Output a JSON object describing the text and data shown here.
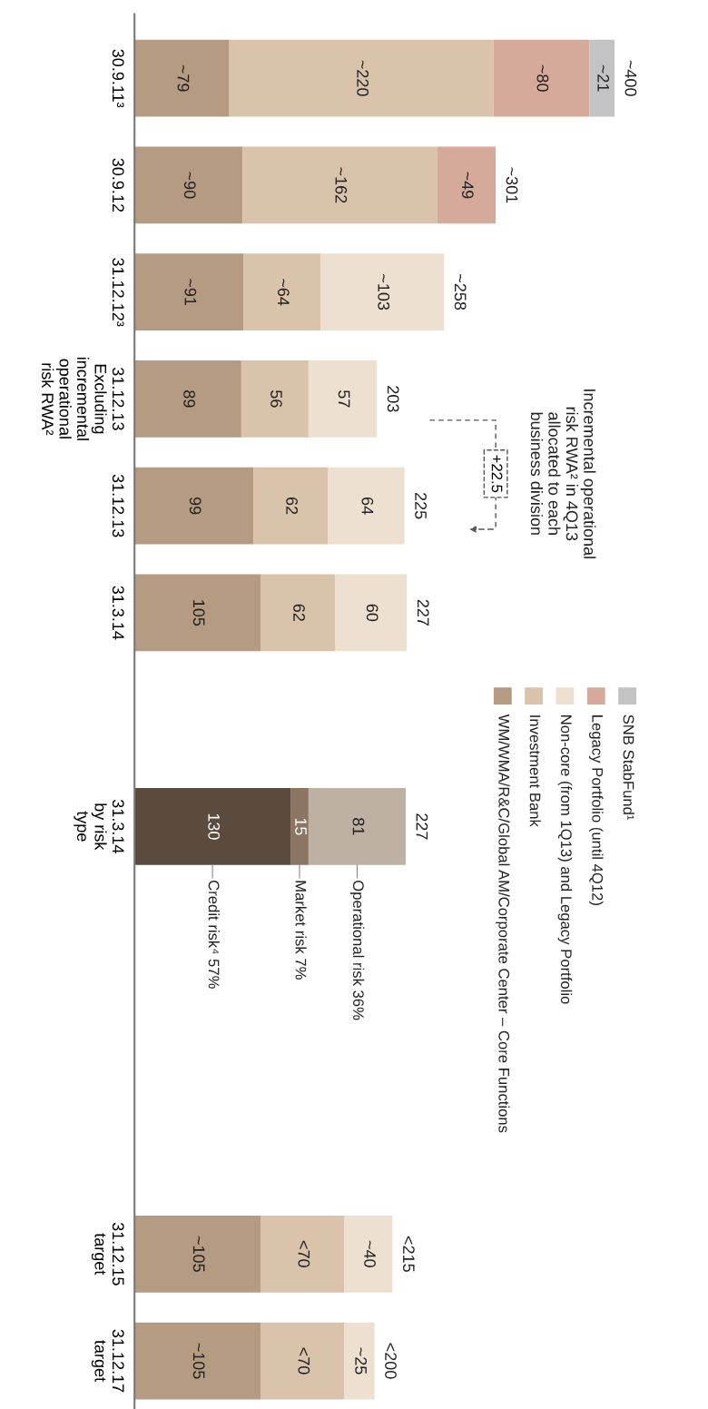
{
  "chart_data": {
    "type": "bar",
    "orientation": "horizontal",
    "stacked": true,
    "legend": "right",
    "grid": false,
    "tick_labels": "y",
    "categories": [
      "30.9.11³",
      "30.9.12",
      "31.12.12³",
      "31.12.13\nExcluding\nincremental\noperational\nrisk RWA²",
      "31.12.13",
      "31.3.14",
      null,
      "31.3.14\nby risk\ntype",
      null,
      null,
      null,
      "31.12.15\ntarget",
      "31.12.17\ntarget"
    ],
    "series": [
      {
        "name": "WM/WMA/R&C/Global AM/Corporate Center – Core Functions",
        "color": "#b49b81",
        "values": [
          79,
          90,
          91,
          89,
          99,
          105,
          null,
          null,
          null,
          null,
          null,
          105,
          105
        ],
        "value_labels": [
          "~79",
          "~90",
          "~91",
          "89",
          "99",
          "105",
          null,
          null,
          null,
          null,
          null,
          "~105",
          "~105"
        ]
      },
      {
        "name": "Investment Bank",
        "color": "#d9c3aa",
        "values": [
          220,
          162,
          64,
          56,
          62,
          62,
          null,
          null,
          null,
          null,
          null,
          70,
          70
        ],
        "value_labels": [
          "~220",
          "~162",
          "~64",
          "56",
          "62",
          "62",
          null,
          null,
          null,
          null,
          null,
          "<70",
          "<70"
        ]
      },
      {
        "name": "Non-core (from 1Q13) and Legacy Portfolio",
        "color": "#ede0d0",
        "values": [
          null,
          null,
          103,
          57,
          64,
          60,
          null,
          null,
          null,
          null,
          null,
          40,
          25
        ],
        "value_labels": [
          null,
          null,
          "~103",
          "57",
          "64",
          "60",
          null,
          null,
          null,
          null,
          null,
          "~40",
          "~25"
        ]
      },
      {
        "name": "Legacy Portfolio (until 4Q12)",
        "color": "#d6aa9a",
        "values": [
          80,
          49,
          null,
          null,
          null,
          null,
          null,
          null,
          null,
          null,
          null,
          null,
          null
        ],
        "value_labels": [
          "~80",
          "~49",
          null,
          null,
          null,
          null,
          null,
          null,
          null,
          null,
          null,
          null,
          null
        ]
      },
      {
        "name": "SNB StabFund¹",
        "color": "#c3c3c3",
        "values": [
          21,
          null,
          null,
          null,
          null,
          null,
          null,
          null,
          null,
          null,
          null,
          null,
          null
        ],
        "value_labels": [
          "~21",
          null,
          null,
          null,
          null,
          null,
          null,
          null,
          null,
          null,
          null,
          null,
          null
        ]
      },
      {
        "color": "#5b4b3e",
        "values": [
          null,
          null,
          null,
          null,
          null,
          null,
          null,
          130,
          null,
          null,
          null,
          null,
          null
        ],
        "value_labels": [
          null,
          null,
          null,
          null,
          null,
          null,
          null,
          "130",
          null,
          null,
          null,
          null,
          null
        ]
      },
      {
        "color": "#8b7563",
        "values": [
          null,
          null,
          null,
          null,
          null,
          null,
          null,
          15,
          null,
          null,
          null,
          null,
          null
        ],
        "value_labels": [
          null,
          null,
          null,
          null,
          null,
          null,
          null,
          "15",
          null,
          null,
          null,
          null,
          null
        ]
      },
      {
        "color": "#beb1a4",
        "values": [
          null,
          null,
          null,
          null,
          null,
          null,
          null,
          81,
          null,
          null,
          null,
          null,
          null
        ],
        "value_labels": [
          null,
          null,
          null,
          null,
          null,
          null,
          null,
          "81",
          null,
          null,
          null,
          null,
          null
        ]
      }
    ],
    "totals": [
      "~400",
      "~301",
      "~258",
      "203",
      "225",
      "227",
      null,
      "227",
      null,
      null,
      null,
      "<215",
      "<200"
    ],
    "annotations": [
      "Incremental operational\nrisk RWA² in 4Q13\nallocated to each\nbusiness division",
      "+22.5",
      "Credit risk⁴ 57%",
      "Market risk 7%",
      "Operational risk 36%"
    ]
  }
}
